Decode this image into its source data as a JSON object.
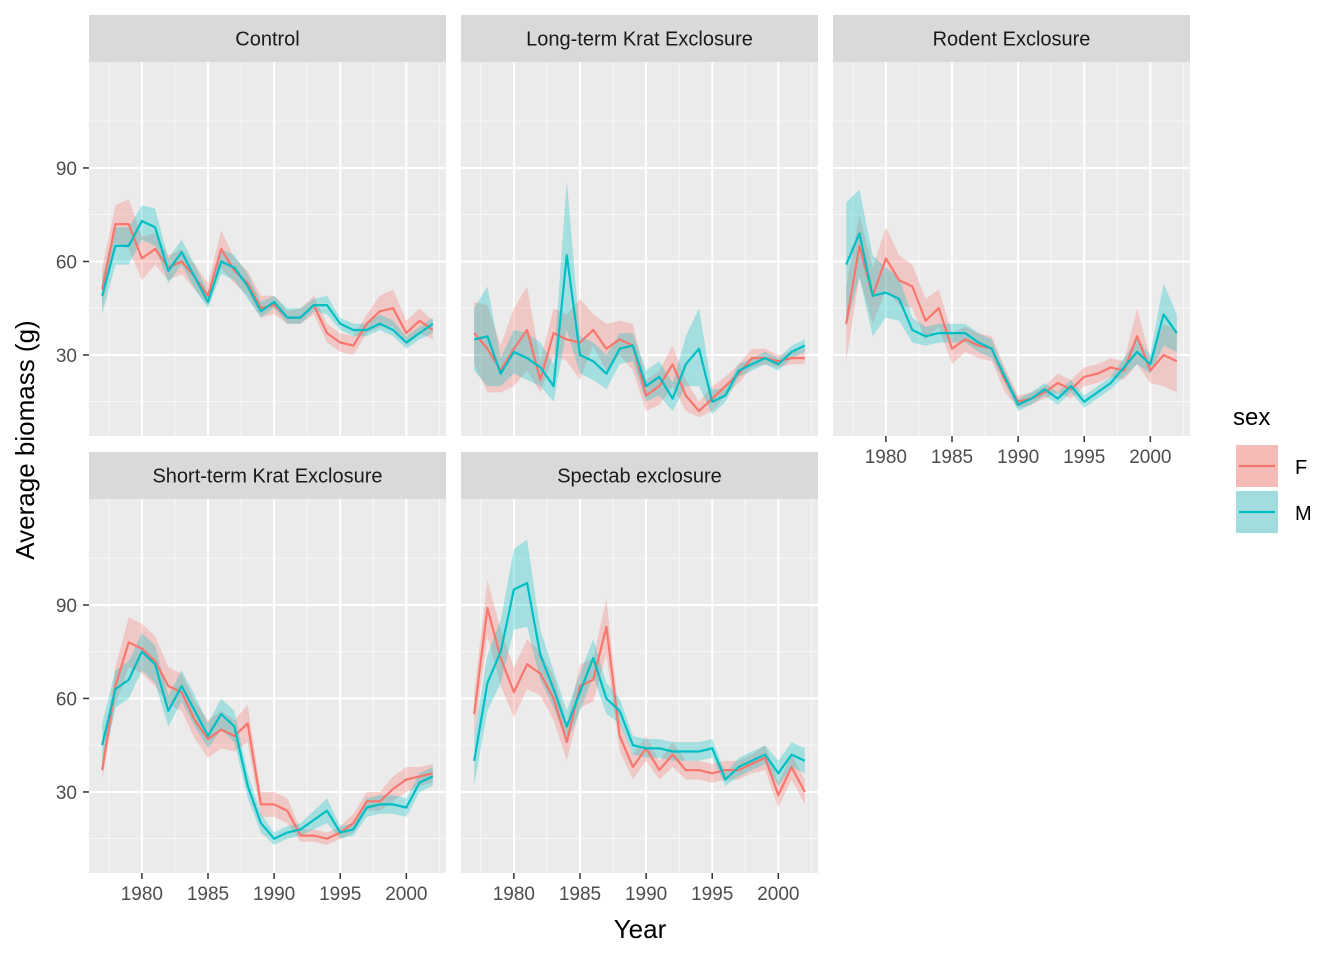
{
  "xlabel": "Year",
  "ylabel": "Average biomass (g)",
  "legend": {
    "title": "sex",
    "position": "right",
    "items": [
      {
        "label": "F",
        "color": "#F8766D",
        "fill": "#F4BBB7"
      },
      {
        "label": "M",
        "color": "#00BFC4",
        "fill": "#A2DCDE"
      }
    ]
  },
  "colors": {
    "panel_bg": "#EBEBEB",
    "strip_bg": "#D9D9D9",
    "grid": "#FFFFFF",
    "tick_text": "#4D4D4D"
  },
  "chart_data": {
    "type": "line",
    "facet_layout": "3 columns x 2 rows, shared axes, ribbons = confidence bands",
    "x_ticks": [
      1980,
      1985,
      1990,
      1995,
      2000
    ],
    "y_ticks": [
      30,
      60,
      90
    ],
    "xlim": [
      1976,
      2003
    ],
    "ylim": [
      4,
      124
    ],
    "panels": [
      {
        "title": "Control",
        "x": [
          1977,
          1978,
          1979,
          1980,
          1981,
          1982,
          1983,
          1984,
          1985,
          1986,
          1987,
          1988,
          1989,
          1990,
          1991,
          1992,
          1993,
          1994,
          1995,
          1996,
          1997,
          1998,
          1999,
          2000,
          2001,
          2002
        ],
        "series": [
          {
            "name": "F",
            "y": [
              51,
              72,
              72,
              61,
              64,
              58,
              60,
              55,
              49,
              64,
              57,
              53,
              45,
              46,
              42,
              42,
              46,
              37,
              34,
              33,
              40,
              44,
              45,
              37,
              41,
              38
            ],
            "lo": [
              45,
              66,
              64,
              54,
              59,
              54,
              56,
              51,
              46,
              58,
              53,
              49,
              42,
              43,
              40,
              40,
              43,
              34,
              31,
              30,
              37,
              39,
              39,
              33,
              37,
              35
            ],
            "hi": [
              58,
              78,
              80,
              68,
              69,
              62,
              64,
              59,
              53,
              70,
              61,
              57,
              49,
              49,
              44,
              45,
              49,
              40,
              37,
              36,
              43,
              49,
              51,
              41,
              45,
              41
            ]
          },
          {
            "name": "M",
            "y": [
              49,
              65,
              65,
              73,
              71,
              57,
              63,
              55,
              47,
              60,
              58,
              52,
              44,
              47,
              42,
              42,
              46,
              46,
              40,
              38,
              38,
              40,
              38,
              34,
              37,
              40
            ],
            "lo": [
              43,
              59,
              59,
              67,
              65,
              53,
              59,
              51,
              45,
              56,
              54,
              48,
              42,
              45,
              40,
              40,
              44,
              43,
              38,
              36,
              36,
              38,
              36,
              32,
              35,
              37
            ],
            "hi": [
              55,
              71,
              71,
              78,
              77,
              61,
              67,
              59,
              50,
              64,
              62,
              56,
              47,
              49,
              45,
              45,
              48,
              49,
              42,
              40,
              40,
              43,
              41,
              36,
              39,
              42
            ]
          }
        ]
      },
      {
        "title": "Long-term Krat Exclosure",
        "x": [
          1977,
          1978,
          1979,
          1980,
          1981,
          1982,
          1983,
          1984,
          1985,
          1986,
          1987,
          1988,
          1989,
          1990,
          1991,
          1992,
          1993,
          1994,
          1995,
          1996,
          1997,
          1998,
          1999,
          2000,
          2001,
          2002
        ],
        "series": [
          {
            "name": "F",
            "y": [
              37,
              32,
              25,
              32,
              38,
              22,
              37,
              35,
              34,
              38,
              32,
              35,
              33,
              17,
              20,
              27,
              17,
              12,
              16,
              20,
              24,
              29,
              29,
              28,
              29,
              29
            ],
            "lo": [
              27,
              18,
              18,
              20,
              25,
              18,
              30,
              28,
              22,
              33,
              25,
              30,
              25,
              12,
              14,
              20,
              12,
              10,
              12,
              17,
              21,
              26,
              27,
              26,
              27,
              27
            ],
            "hi": [
              47,
              46,
              33,
              45,
              52,
              28,
              45,
              43,
              48,
              43,
              40,
              41,
              40,
              22,
              25,
              33,
              22,
              15,
              20,
              23,
              27,
              32,
              32,
              30,
              31,
              32
            ]
          },
          {
            "name": "M",
            "y": [
              35,
              36,
              24,
              31,
              29,
              26,
              20,
              62,
              30,
              28,
              24,
              32,
              33,
              20,
              23,
              16,
              27,
              32,
              15,
              17,
              25,
              27,
              29,
              27,
              31,
              33
            ],
            "lo": [
              25,
              20,
              20,
              24,
              22,
              20,
              15,
              38,
              24,
              22,
              19,
              27,
              28,
              15,
              17,
              12,
              20,
              20,
              11,
              15,
              23,
              25,
              27,
              25,
              29,
              31
            ],
            "hi": [
              45,
              52,
              29,
              38,
              37,
              34,
              27,
              86,
              36,
              34,
              30,
              37,
              37,
              25,
              28,
              21,
              36,
              45,
              19,
              19,
              27,
              29,
              31,
              29,
              33,
              35
            ]
          }
        ]
      },
      {
        "title": "Rodent Exclosure",
        "x": [
          1977,
          1978,
          1979,
          1980,
          1981,
          1982,
          1983,
          1984,
          1985,
          1986,
          1987,
          1988,
          1989,
          1990,
          1991,
          1992,
          1993,
          1994,
          1995,
          1996,
          1997,
          1998,
          1999,
          2000,
          2001,
          2002
        ],
        "series": [
          {
            "name": "F",
            "y": [
              40,
              65,
              49,
              61,
              54,
              52,
              41,
              45,
              32,
              35,
              33,
              32,
              22,
              15,
              16,
              18,
              21,
              19,
              23,
              24,
              26,
              25,
              36,
              25,
              30,
              28
            ],
            "lo": [
              28,
              55,
              40,
              51,
              46,
              45,
              35,
              39,
              27,
              31,
              29,
              28,
              18,
              13,
              14,
              16,
              18,
              16,
              20,
              21,
              23,
              22,
              27,
              21,
              20,
              18
            ],
            "hi": [
              52,
              75,
              58,
              71,
              62,
              59,
              48,
              51,
              37,
              39,
              37,
              36,
              26,
              17,
              18,
              20,
              24,
              22,
              26,
              27,
              29,
              28,
              45,
              29,
              40,
              38
            ]
          },
          {
            "name": "M",
            "y": [
              59,
              69,
              49,
              50,
              48,
              38,
              36,
              37,
              37,
              37,
              34,
              32,
              23,
              14,
              16,
              19,
              16,
              20,
              15,
              18,
              21,
              26,
              31,
              27,
              43,
              37
            ],
            "lo": [
              39,
              55,
              36,
              42,
              41,
              34,
              33,
              34,
              34,
              34,
              31,
              29,
              21,
              12,
              14,
              17,
              14,
              18,
              13,
              16,
              19,
              23,
              27,
              24,
              33,
              31
            ],
            "hi": [
              79,
              83,
              62,
              58,
              55,
              42,
              39,
              40,
              40,
              40,
              37,
              35,
              25,
              16,
              18,
              21,
              18,
              22,
              17,
              20,
              23,
              29,
              35,
              30,
              53,
              43
            ]
          }
        ]
      },
      {
        "title": "Short-term Krat Exclosure",
        "x": [
          1977,
          1978,
          1979,
          1980,
          1981,
          1982,
          1983,
          1984,
          1985,
          1986,
          1987,
          1988,
          1989,
          1990,
          1991,
          1992,
          1993,
          1994,
          1995,
          1996,
          1997,
          1998,
          1999,
          2000,
          2001,
          2002
        ],
        "series": [
          {
            "name": "F",
            "y": [
              37,
              64,
              78,
              76,
              72,
              64,
              62,
              53,
              47,
              50,
              48,
              52,
              26,
              26,
              24,
              16,
              16,
              15,
              17,
              20,
              27,
              27,
              31,
              34,
              35,
              36
            ],
            "lo": [
              34,
              58,
              70,
              68,
              64,
              58,
              56,
              47,
              41,
              44,
              43,
              46,
              22,
              22,
              20,
              14,
              14,
              13,
              15,
              17,
              24,
              24,
              27,
              30,
              32,
              33
            ],
            "hi": [
              40,
              70,
              86,
              84,
              80,
              70,
              68,
              59,
              53,
              56,
              53,
              58,
              30,
              30,
              28,
              18,
              18,
              17,
              19,
              23,
              30,
              30,
              35,
              38,
              38,
              39
            ]
          },
          {
            "name": "M",
            "y": [
              45,
              63,
              66,
              75,
              71,
              56,
              64,
              56,
              48,
              55,
              51,
              32,
              20,
              15,
              17,
              18,
              21,
              24,
              17,
              18,
              25,
              26,
              26,
              25,
              33,
              35
            ],
            "lo": [
              38,
              57,
              60,
              69,
              65,
              51,
              59,
              51,
              44,
              50,
              46,
              28,
              17,
              13,
              15,
              16,
              18,
              20,
              15,
              16,
              22,
              23,
              23,
              22,
              30,
              32
            ],
            "hi": [
              52,
              69,
              72,
              81,
              77,
              61,
              69,
              61,
              52,
              60,
              56,
              36,
              23,
              17,
              19,
              20,
              24,
              28,
              19,
              20,
              28,
              29,
              29,
              28,
              36,
              38
            ]
          }
        ]
      },
      {
        "title": "Spectab exclosure",
        "x": [
          1977,
          1978,
          1979,
          1980,
          1981,
          1982,
          1983,
          1984,
          1985,
          1986,
          1987,
          1988,
          1989,
          1990,
          1991,
          1992,
          1993,
          1994,
          1995,
          1996,
          1997,
          1998,
          1999,
          2000,
          2001,
          2002
        ],
        "series": [
          {
            "name": "F",
            "y": [
              55,
              89,
              73,
              62,
              71,
              68,
              60,
              46,
              64,
              66,
              83,
              48,
              38,
              44,
              37,
              42,
              37,
              37,
              36,
              37,
              37,
              39,
              41,
              29,
              38,
              30
            ],
            "lo": [
              48,
              80,
              64,
              54,
              63,
              61,
              53,
              40,
              57,
              59,
              74,
              43,
              34,
              40,
              34,
              38,
              34,
              34,
              33,
              34,
              34,
              36,
              37,
              25,
              34,
              26
            ],
            "hi": [
              62,
              98,
              82,
              70,
              79,
              75,
              67,
              52,
              71,
              73,
              92,
              53,
              42,
              48,
              40,
              46,
              40,
              40,
              39,
              40,
              40,
              42,
              45,
              33,
              42,
              34
            ]
          },
          {
            "name": "M",
            "y": [
              40,
              65,
              75,
              95,
              97,
              74,
              63,
              51,
              62,
              73,
              60,
              56,
              45,
              44,
              44,
              43,
              43,
              43,
              44,
              34,
              38,
              40,
              42,
              36,
              42,
              40
            ],
            "lo": [
              32,
              56,
              65,
              82,
              83,
              66,
              57,
              46,
              56,
              67,
              55,
              52,
              42,
              41,
              41,
              40,
              40,
              40,
              41,
              32,
              35,
              37,
              39,
              32,
              38,
              36
            ],
            "hi": [
              48,
              74,
              85,
              108,
              111,
              82,
              69,
              56,
              68,
              79,
              65,
              60,
              48,
              47,
              47,
              46,
              46,
              46,
              47,
              36,
              41,
              43,
              45,
              40,
              46,
              44
            ]
          }
        ]
      }
    ]
  }
}
